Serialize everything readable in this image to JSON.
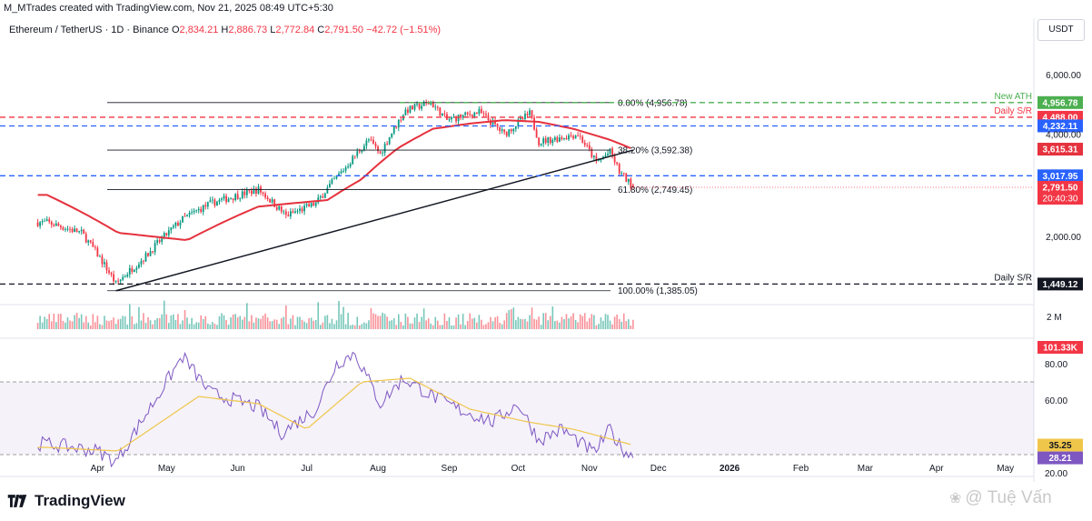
{
  "header": {
    "credit": "M_MTrades created with TradingView.com, Nov 21, 2025 08:49 UTC+5:30",
    "symbol": "Ethereum / TetherUS · 1D · Binance",
    "open_label": "O",
    "open_value": "2,834.21",
    "high_label": "H",
    "high_value": "2,886.73",
    "low_label": "L",
    "low_value": "2,772.84",
    "close_label": "C",
    "close_value": "2,791.50",
    "change": "−42.72 (−1.51%)",
    "currency": "USDT"
  },
  "branding": {
    "logo_text": "TradingView",
    "watermark": "@ Tuệ Vấn"
  },
  "colors": {
    "up": "#089981",
    "down": "#f23645",
    "ma": "#e5323e",
    "rsi": "#7e57c2",
    "rsi_ma": "#f0c64a",
    "green_level": "#4caf50",
    "blue_level": "#2962ff",
    "text": "#131722"
  },
  "chart_data": [
    {
      "type": "candlestick",
      "title": "Ethereum / TetherUS · 1D · Binance",
      "y_scale": "log",
      "ylim": [
        1300,
        7300
      ],
      "x_ticks": [
        "Apr",
        "May",
        "Jun",
        "Jul",
        "Aug",
        "Sep",
        "Oct",
        "Nov",
        "Dec",
        "2026",
        "Feb",
        "Mar",
        "Apr",
        "May"
      ],
      "y_ticks": [
        "6,000.00",
        "4,000.00",
        "2,000.00"
      ],
      "price_anchors": {
        "dates": [
          "2025-03-10",
          "2025-03-25",
          "2025-04-09",
          "2025-04-22",
          "2025-05-08",
          "2025-05-20",
          "2025-06-10",
          "2025-06-22",
          "2025-07-05",
          "2025-07-18",
          "2025-07-28",
          "2025-08-02",
          "2025-08-13",
          "2025-08-24",
          "2025-08-31",
          "2025-09-14",
          "2025-09-25",
          "2025-10-06",
          "2025-10-10",
          "2025-10-27",
          "2025-11-04",
          "2025-11-10",
          "2025-11-14",
          "2025-11-20"
        ],
        "closes": [
          2200,
          2050,
          1450,
          1750,
          2250,
          2500,
          2750,
          2300,
          2500,
          3200,
          3850,
          3500,
          4700,
          4956.78,
          4400,
          4650,
          4000,
          4600,
          3800,
          4000,
          3300,
          3550,
          3100,
          2791.5
        ]
      },
      "series": [
        {
          "name": "SMA 50",
          "dates": [
            "2025-03-10",
            "2025-04-10",
            "2025-05-10",
            "2025-06-10",
            "2025-07-10",
            "2025-07-25",
            "2025-08-10",
            "2025-08-25",
            "2025-09-10",
            "2025-09-25",
            "2025-10-10",
            "2025-10-25",
            "2025-11-10",
            "2025-11-20"
          ],
          "values": [
            2650,
            2050,
            1950,
            2450,
            2560,
            2950,
            3650,
            4150,
            4300,
            4400,
            4350,
            4150,
            3850,
            3615.31
          ]
        }
      ],
      "fibonacci": [
        {
          "label": "0.00% (4,956.78)",
          "value": 4956.78
        },
        {
          "label": "38.20% (3,592.38)",
          "value": 3592.38
        },
        {
          "label": "61.80% (2,749.45)",
          "value": 2749.45
        },
        {
          "label": "100.00% (1,385.05)",
          "value": 1385.05
        }
      ],
      "levels": [
        {
          "label": "New ATH",
          "value": 4956.78,
          "tag": "4,956.78",
          "style": "dashed",
          "color": "#4caf50"
        },
        {
          "label": "Daily S/R",
          "value": 4488.0,
          "tag": "4,488.00",
          "style": "dashed",
          "color": "#f23645"
        },
        {
          "label": "",
          "value": 4232.11,
          "tag": "4,232.11",
          "style": "dashed",
          "color": "#2962ff"
        },
        {
          "label": "",
          "value": 3017.95,
          "tag": "3,017.95",
          "style": "dashed",
          "color": "#2962ff"
        },
        {
          "label": "Daily S/R",
          "value": 1449.12,
          "tag": "1,449.12",
          "style": "dashed",
          "color": "#131722"
        }
      ],
      "price_tags": [
        {
          "value": 3615.31,
          "text": "3,615.31",
          "color": "#e5323e"
        },
        {
          "value": 2791.5,
          "text": "2,791.50",
          "color": "#f23645",
          "sub": "20:40:30"
        }
      ],
      "trendline": {
        "from": {
          "date": "2025-04-09",
          "value": 1385.05
        },
        "to": {
          "date": "2025-11-20",
          "value": 3592.38
        }
      }
    },
    {
      "type": "bar",
      "title": "Volume",
      "y_ticks": [
        "2 M"
      ],
      "last_value": "101.33K"
    },
    {
      "type": "line",
      "title": "RSI",
      "ylim": [
        20,
        92
      ],
      "y_ticks": [
        "80.00",
        "60.00",
        "20.00"
      ],
      "band": [
        30,
        70
      ],
      "series": [
        {
          "name": "RSI",
          "last_value": 28.21,
          "last_label": "28.21",
          "color": "#7e57c2"
        },
        {
          "name": "RSI MA",
          "last_value": 35.25,
          "last_label": "35.25",
          "color": "#f0c64a"
        }
      ],
      "rsi_anchors": {
        "dates": [
          "2025-03-10",
          "2025-04-01",
          "2025-04-09",
          "2025-04-20",
          "2025-05-08",
          "2025-05-20",
          "2025-06-10",
          "2025-06-20",
          "2025-07-05",
          "2025-07-14",
          "2025-07-22",
          "2025-08-02",
          "2025-08-12",
          "2025-08-25",
          "2025-09-05",
          "2025-09-20",
          "2025-10-01",
          "2025-10-10",
          "2025-10-20",
          "2025-11-03",
          "2025-11-10",
          "2025-11-14",
          "2025-11-20"
        ],
        "values": [
          36,
          32,
          26,
          48,
          84,
          64,
          56,
          42,
          55,
          80,
          86,
          58,
          72,
          62,
          55,
          48,
          58,
          38,
          44,
          31,
          44,
          35,
          28.21
        ]
      },
      "rsi_ma_anchors": {
        "dates": [
          "2025-03-10",
          "2025-04-10",
          "2025-05-15",
          "2025-06-10",
          "2025-07-01",
          "2025-07-25",
          "2025-08-15",
          "2025-09-10",
          "2025-10-05",
          "2025-10-25",
          "2025-11-20"
        ],
        "values": [
          34,
          32,
          62,
          58,
          44,
          70,
          72,
          55,
          48,
          44,
          35.25
        ]
      }
    }
  ]
}
